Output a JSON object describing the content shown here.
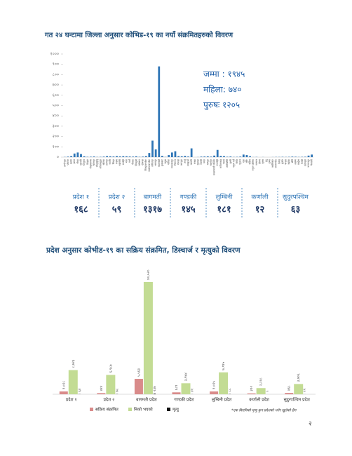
{
  "chart_data": [
    {
      "type": "bar",
      "title": "गत २४ घन्टामा जिल्ला अनुसार कोभिड-१९ का नयाँ संक्रमितहरुको विवरण",
      "categories": [
        "ताप्लेजुङ",
        "पाँचथर",
        "इलाम",
        "झापा",
        "मोरङ",
        "सुनसरी",
        "धनकुटा",
        "तेह्रथुम",
        "संखुवासभा",
        "भोजपुर",
        "सोलुखुम्बु",
        "ओखलढुङ्गा",
        "खोटाङ",
        "उदयपुर",
        "सप्तरी",
        "सिरहा",
        "धनुषा",
        "महोत्तरी",
        "सर्लाही",
        "बारा",
        "पर्सा",
        "रौतहट",
        "सिन्धुली",
        "रामेछाप",
        "दोलखा",
        "सिन्धुपाल्चोक",
        "काभ्रेपलान्चोक",
        "ललितपुर",
        "भक्तपुर",
        "काठमाडौं",
        "नुवाकोट",
        "रसुवा",
        "धादिङ",
        "मकवानपुर",
        "चितवन",
        "गोरखा",
        "लमजुङ",
        "तनहुँ",
        "स्याङ्जा",
        "कास्की",
        "मनाङ",
        "मुस्ताङ",
        "म्याग्दी",
        "पर्वत",
        "बाग्लुङ",
        "नवलपुर",
        "नवलपरासी पश्चिम",
        "रुपन्देही",
        "कपिलवस्तु",
        "पाल्पा",
        "अर्घाखाँची",
        "गुल्मी",
        "रुकुम पूर्व",
        "रोल्पा",
        "प्युठान",
        "दाङ",
        "बाँके",
        "बर्दिया",
        "रुकुम पश्चिम",
        "सल्यान",
        "डोल्पा",
        "जुम्ला",
        "मुगु",
        "हुम्ला",
        "कालिकोट",
        "जाजरकोट",
        "दैलेख",
        "सुर्खेत",
        "बाजुरा",
        "बझाङ",
        "डोटी",
        "अछाम",
        "दार्चुला",
        "बैतडी",
        "डडेल्धुरा",
        "कञ्चनपुर",
        "कैलाली"
      ],
      "values": [
        2,
        5,
        10,
        35,
        45,
        30,
        8,
        3,
        4,
        6,
        2,
        3,
        5,
        10,
        8,
        6,
        10,
        7,
        9,
        8,
        6,
        5,
        8,
        3,
        5,
        10,
        40,
        160,
        75,
        880,
        12,
        2,
        20,
        45,
        57,
        10,
        8,
        12,
        6,
        85,
        0,
        1,
        5,
        6,
        7,
        5,
        15,
        70,
        12,
        10,
        4,
        6,
        2,
        3,
        5,
        25,
        20,
        9,
        1,
        2,
        0,
        1,
        0,
        0,
        1,
        2,
        2,
        3,
        2,
        3,
        5,
        4,
        2,
        3,
        4,
        15,
        25
      ],
      "color": "#2e75b6",
      "ylim": [
        0,
        1000
      ],
      "yticks": [
        {
          "value": 0,
          "label": "०"
        },
        {
          "value": 100,
          "label": "१००"
        },
        {
          "value": 200,
          "label": "२००"
        },
        {
          "value": 300,
          "label": "३००"
        },
        {
          "value": 400,
          "label": "४००"
        },
        {
          "value": 500,
          "label": "५००"
        },
        {
          "value": 600,
          "label": "६००"
        },
        {
          "value": 700,
          "label": "७००"
        },
        {
          "value": 800,
          "label": "८००"
        },
        {
          "value": 900,
          "label": "९००"
        },
        {
          "value": 1000,
          "label": "१०००"
        }
      ],
      "annotations": [
        "जम्मा : १९४५",
        "महिला: ७४०",
        "पुरुषः १२०५"
      ]
    },
    {
      "type": "grouped-bar",
      "title": "प्रदेश अनुसार कोभीड-१९ का सक्रिय संक्रमित, डिस्चार्ज र मृत्युको विवरण",
      "categories": [
        "प्रदेश १",
        "प्रदेश २",
        "बागमती प्रदेश",
        "गण्डकी प्रदेश",
        "लुम्बिनी प्रदेश",
        "कर्णाली प्रदेश",
        "सुदुरपश्चिम प्रदेश"
      ],
      "series": [
        {
          "name": "सक्रिय संक्रमित",
          "color": "#d98b8a",
          "values": [
            1028,
            412,
            5563,
            689,
            1025,
            312,
            468
          ],
          "value_labels": [
            "१,०२८",
            "४१२",
            "५,५६३",
            "६८९",
            "१,०२५",
            "३१२",
            "४६८"
          ]
        },
        {
          "name": "निको भएको",
          "color": "#c3dc94",
          "values": [
            8723,
            6987,
            40520,
            3974,
            7915,
            2218,
            3706
          ],
          "value_labels": [
            "८,७२३",
            "६,९८७",
            "४०,५२०",
            "३,९७४",
            "७,९१५",
            "२,२१८",
            "३,७०६"
          ]
        },
        {
          "name": "मृत्यु",
          "color": "#111111",
          "values": [
            64,
            78,
            237,
            41,
            88,
            8,
            19
          ],
          "value_labels": [
            "६४",
            "७८",
            "२३७",
            "४१",
            "८८",
            "८",
            "१९"
          ]
        }
      ],
      "footnote": "*एक बिरामिको मृत्यु कुन प्रदेशको भनेर खुलेको छैन"
    }
  ],
  "province_summary": [
    {
      "name": "प्रदेश १",
      "total": "१६८"
    },
    {
      "name": "प्रदेश २",
      "total": "५९"
    },
    {
      "name": "बागमती",
      "total": "१३१७"
    },
    {
      "name": "गण्डकी",
      "total": "१४५"
    },
    {
      "name": "लुम्बिनी",
      "total": "१८१"
    },
    {
      "name": "कर्णाली",
      "total": "१२"
    },
    {
      "name": "सुदुरपश्चिम",
      "total": "६३"
    }
  ],
  "page_number": "२"
}
